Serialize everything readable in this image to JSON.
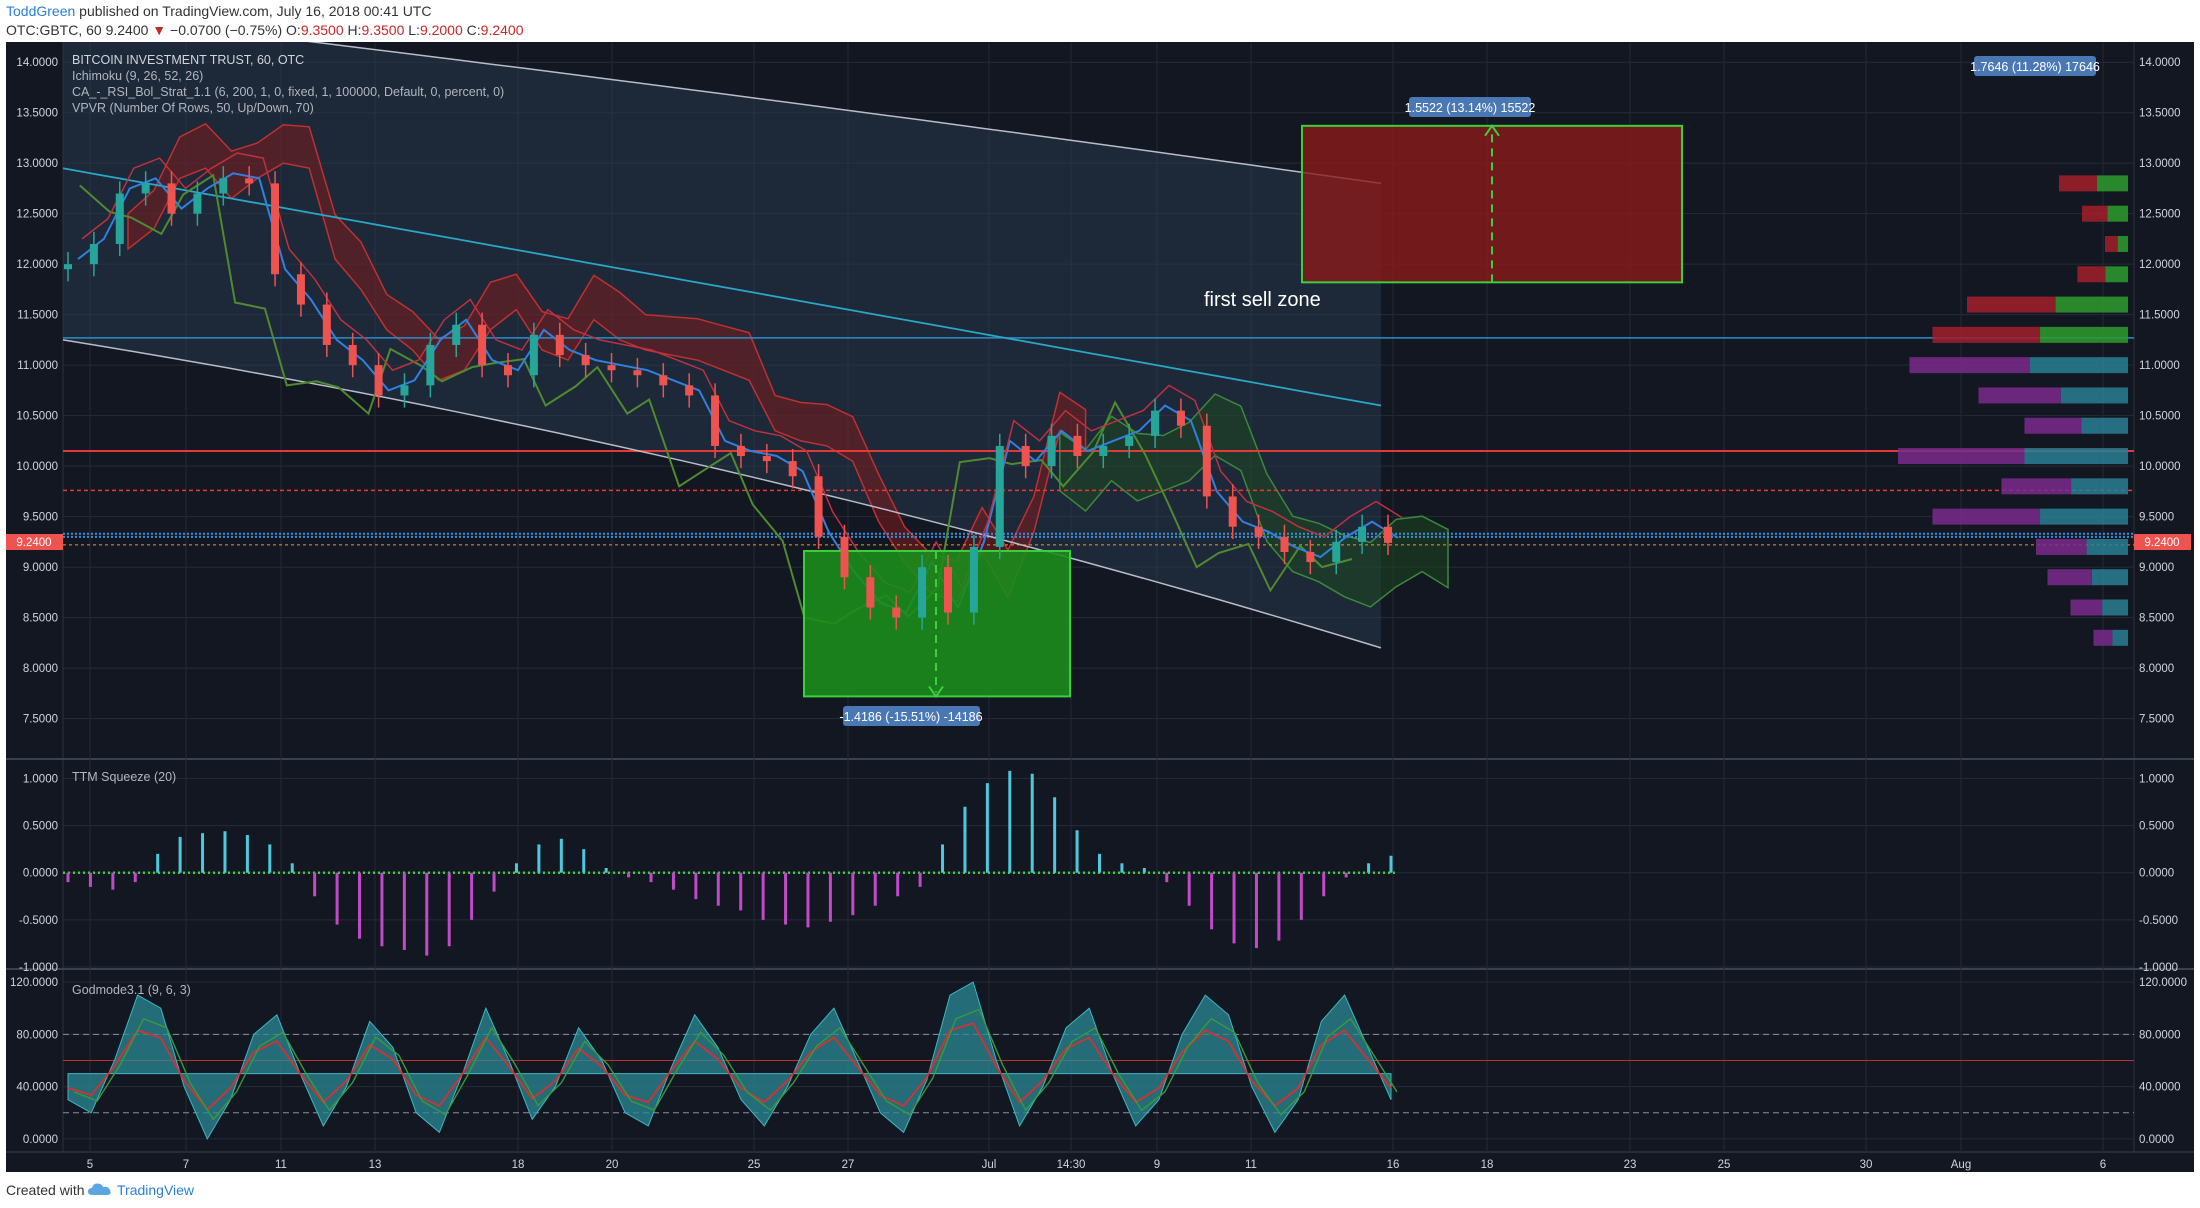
{
  "header": {
    "author": "ToddGreen",
    "published": "published on TradingView.com, July 16, 2018 00:41 UTC",
    "symbol": "OTC:GBTC, 60",
    "last": "9.2400",
    "arrow": "▼",
    "change": "−0.0700 (−0.75%)",
    "o_label": "O:",
    "o": "9.3500",
    "h_label": "H:",
    "h": "9.3500",
    "l_label": "L:",
    "l": "9.2000",
    "c_label": "C:",
    "c": "9.2400"
  },
  "legend": {
    "title": "BITCOIN INVESTMENT TRUST, 60, OTC",
    "ichimoku": "Ichimoku (9, 26, 52, 26)",
    "strategy": "CA_-_RSI_Bol_Strat_1.1 (6, 200, 1, 0, fixed, 1, 100000, Default, 0, percent, 0)",
    "vpvr": "VPVR (Number Of Rows, 50, Up/Down, 70)"
  },
  "annotations": {
    "sell_zone": "first sell zone",
    "up_measure": "1.5522 (13.14%) 15522",
    "down_measure": "-1.4186 (-15.51%) -14186",
    "top_right": "1.7646 (11.28%) 17646",
    "price_tag": "9.2400"
  },
  "colors": {
    "background": "#131722",
    "up": "#26a69a",
    "down": "#ef5350",
    "sell_zone": "#8b1a1a",
    "buy_zone": "#1c8c1c",
    "measure_label": "#4a78b5",
    "squeeze_pos": "#4ec8dc",
    "squeeze_neg": "#c04ac8",
    "godmode_fill": "#2a8a95"
  },
  "chart_data": [
    {
      "type": "candlestick",
      "title": "BITCOIN INVESTMENT TRUST, 60, OTC",
      "ylim": [
        7.1,
        14.2
      ],
      "y_ticks": [
        "14.0000",
        "13.5000",
        "13.0000",
        "12.5000",
        "12.0000",
        "11.5000",
        "11.0000",
        "10.5000",
        "10.0000",
        "9.5000",
        "9.0000",
        "8.5000",
        "8.0000",
        "7.5000"
      ],
      "x_ticks": [
        "5",
        "7",
        "11",
        "13",
        "18",
        "20",
        "25",
        "27",
        "Jul",
        "14:30",
        "9",
        "11",
        "16",
        "18",
        "23",
        "25",
        "30",
        "Aug",
        "6"
      ],
      "close": [
        12.0,
        12.2,
        12.7,
        12.8,
        12.5,
        12.7,
        12.85,
        12.8,
        11.9,
        11.6,
        11.2,
        11.0,
        10.7,
        10.8,
        11.2,
        11.4,
        11.0,
        10.9,
        11.3,
        11.1,
        11.0,
        10.95,
        10.9,
        10.8,
        10.7,
        10.2,
        10.1,
        10.05,
        9.9,
        9.3,
        8.9,
        8.6,
        8.5,
        9.0,
        8.55,
        9.2,
        10.2,
        10.0,
        10.3,
        10.1,
        10.2,
        10.3,
        10.55,
        10.4,
        9.7,
        9.4,
        9.3,
        9.15,
        9.05,
        9.25,
        9.4,
        9.24
      ],
      "horizontal_levels": [
        11.27,
        10.15,
        9.76,
        9.33,
        9.3,
        9.22
      ],
      "sell_zone": [
        11.82,
        13.37
      ],
      "buy_zone": [
        7.72,
        9.16
      ],
      "vpvr_levels": [
        12.8,
        12.5,
        12.2,
        11.9,
        11.6,
        11.3,
        11.0,
        10.7,
        10.4,
        10.1,
        9.8,
        9.5,
        9.2,
        8.9,
        8.6,
        8.3
      ],
      "vpvr_volume": [
        0.3,
        0.2,
        0.1,
        0.22,
        0.7,
        0.85,
        0.95,
        0.65,
        0.45,
        1.0,
        0.55,
        0.85,
        0.4,
        0.35,
        0.25,
        0.15
      ]
    },
    {
      "type": "bar",
      "title": "TTM Squeeze (20)",
      "ylim": [
        -1.0,
        1.1
      ],
      "y_ticks": [
        "1.0000",
        "0.5000",
        "0.0000",
        "-0.5000",
        "-1.0000"
      ],
      "values": [
        -0.1,
        -0.15,
        -0.18,
        -0.1,
        0.2,
        0.38,
        0.42,
        0.44,
        0.4,
        0.3,
        0.1,
        -0.25,
        -0.55,
        -0.7,
        -0.78,
        -0.82,
        -0.88,
        -0.78,
        -0.5,
        -0.2,
        0.1,
        0.3,
        0.36,
        0.25,
        0.05,
        -0.05,
        -0.1,
        -0.18,
        -0.28,
        -0.35,
        -0.4,
        -0.5,
        -0.55,
        -0.58,
        -0.52,
        -0.45,
        -0.35,
        -0.25,
        -0.15,
        0.3,
        0.7,
        0.95,
        1.08,
        1.05,
        0.8,
        0.45,
        0.2,
        0.1,
        0.05,
        -0.1,
        -0.35,
        -0.6,
        -0.75,
        -0.8,
        -0.72,
        -0.5,
        -0.25,
        -0.05,
        0.1,
        0.18
      ]
    },
    {
      "type": "area",
      "title": "Godmode3.1 (9, 6, 3)",
      "ylim": [
        -10,
        130
      ],
      "y_ticks": [
        "120.0000",
        "80.0000",
        "40.0000",
        "0.0000"
      ],
      "reference_lines": [
        80,
        60,
        20
      ],
      "values": [
        30,
        20,
        60,
        110,
        100,
        40,
        0,
        30,
        80,
        95,
        50,
        10,
        40,
        90,
        70,
        20,
        5,
        50,
        100,
        60,
        15,
        40,
        85,
        60,
        20,
        10,
        55,
        95,
        70,
        30,
        10,
        40,
        80,
        100,
        60,
        20,
        5,
        45,
        110,
        120,
        60,
        10,
        40,
        85,
        100,
        50,
        10,
        30,
        80,
        110,
        95,
        40,
        5,
        30,
        90,
        110,
        70,
        30
      ]
    }
  ],
  "footer": {
    "created": "Created with",
    "brand": "TradingView"
  }
}
